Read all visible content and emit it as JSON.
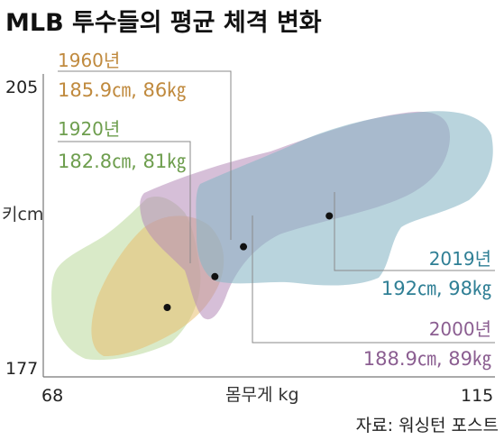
{
  "chart_data": {
    "type": "scatter",
    "title": "MLB 투수들의 평균 체격 변화",
    "xlabel": "몸무게 kg",
    "ylabel": "키cm",
    "xlim": [
      68,
      115
    ],
    "ylim": [
      177,
      205
    ],
    "x_ticks": [
      "68",
      "115"
    ],
    "y_ticks": [
      "205",
      "177"
    ],
    "grid": false,
    "legend": "none",
    "series": [
      {
        "name": "1920년",
        "label": "182.8㎝, 81㎏",
        "x": 81,
        "y": 182.8,
        "color": "#6e9e4e",
        "fill": "#b9d99a"
      },
      {
        "name": "1960년",
        "label": "185.9㎝, 86㎏",
        "x": 86,
        "y": 185.9,
        "color": "#c08a3e",
        "fill": "#e8bf6f"
      },
      {
        "name": "2000년",
        "label": "188.9㎝, 89㎏",
        "x": 89,
        "y": 188.9,
        "color": "#8b5e91",
        "fill": "#b48ab8"
      },
      {
        "name": "2019년",
        "label": "192㎝, 98㎏",
        "x": 98,
        "y": 192,
        "color": "#2f7f95",
        "fill": "#8ab7c7"
      }
    ],
    "source": "자료: 워싱턴 포스트"
  }
}
